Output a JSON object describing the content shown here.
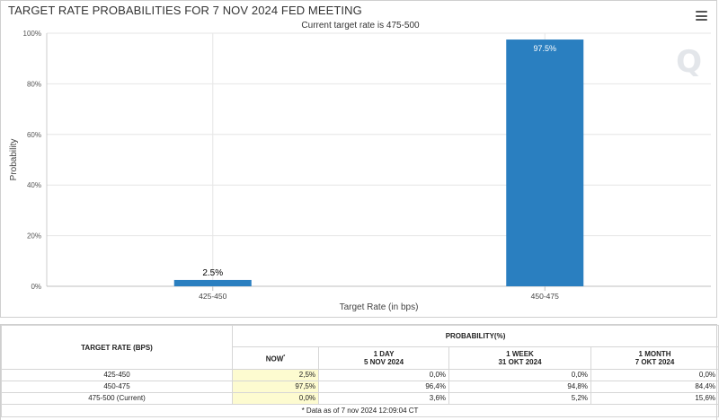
{
  "header": {
    "title": "TARGET RATE PROBABILITIES FOR 7 NOV 2024 FED MEETING",
    "subtitle": "Current target rate is 475-500"
  },
  "watermark_text": "Q",
  "chart_data": {
    "type": "bar",
    "title": "TARGET RATE PROBABILITIES FOR 7 NOV 2024 FED MEETING",
    "subtitle": "Current target rate is 475-500",
    "xlabel": "Target Rate (in bps)",
    "ylabel": "Probability",
    "categories": [
      "425-450",
      "450-475"
    ],
    "values": [
      2.5,
      97.5
    ],
    "data_labels": [
      "2.5%",
      "97.5%"
    ],
    "ylim": [
      0,
      100
    ],
    "yticks": [
      "0%",
      "20%",
      "40%",
      "60%",
      "80%",
      "100%"
    ],
    "ytick_values": [
      0,
      20,
      40,
      60,
      80,
      100
    ],
    "bar_color": "#2a7fc0",
    "grid": true,
    "legend": "none"
  },
  "table": {
    "target_header": "TARGET RATE (BPS)",
    "prob_header": "PROBABILITY(%)",
    "columns": [
      {
        "line1": "NOW",
        "line2": "",
        "mark": "*"
      },
      {
        "line1": "1 DAY",
        "line2": "5 NOV 2024",
        "mark": ""
      },
      {
        "line1": "1 WEEK",
        "line2": "31 OKT 2024",
        "mark": ""
      },
      {
        "line1": "1 MONTH",
        "line2": "7 OKT 2024",
        "mark": ""
      }
    ],
    "rows": [
      {
        "rate": "425-450",
        "values": [
          "2,5%",
          "0,0%",
          "0,0%",
          "0,0%"
        ]
      },
      {
        "rate": "450-475",
        "values": [
          "97,5%",
          "96,4%",
          "94,8%",
          "84,4%"
        ]
      },
      {
        "rate": "475-500 (Current)",
        "values": [
          "0,0%",
          "3,6%",
          "5,2%",
          "15,6%"
        ]
      }
    ],
    "footnote": "* Data as of 7 nov 2024 12:09:04 CT"
  }
}
